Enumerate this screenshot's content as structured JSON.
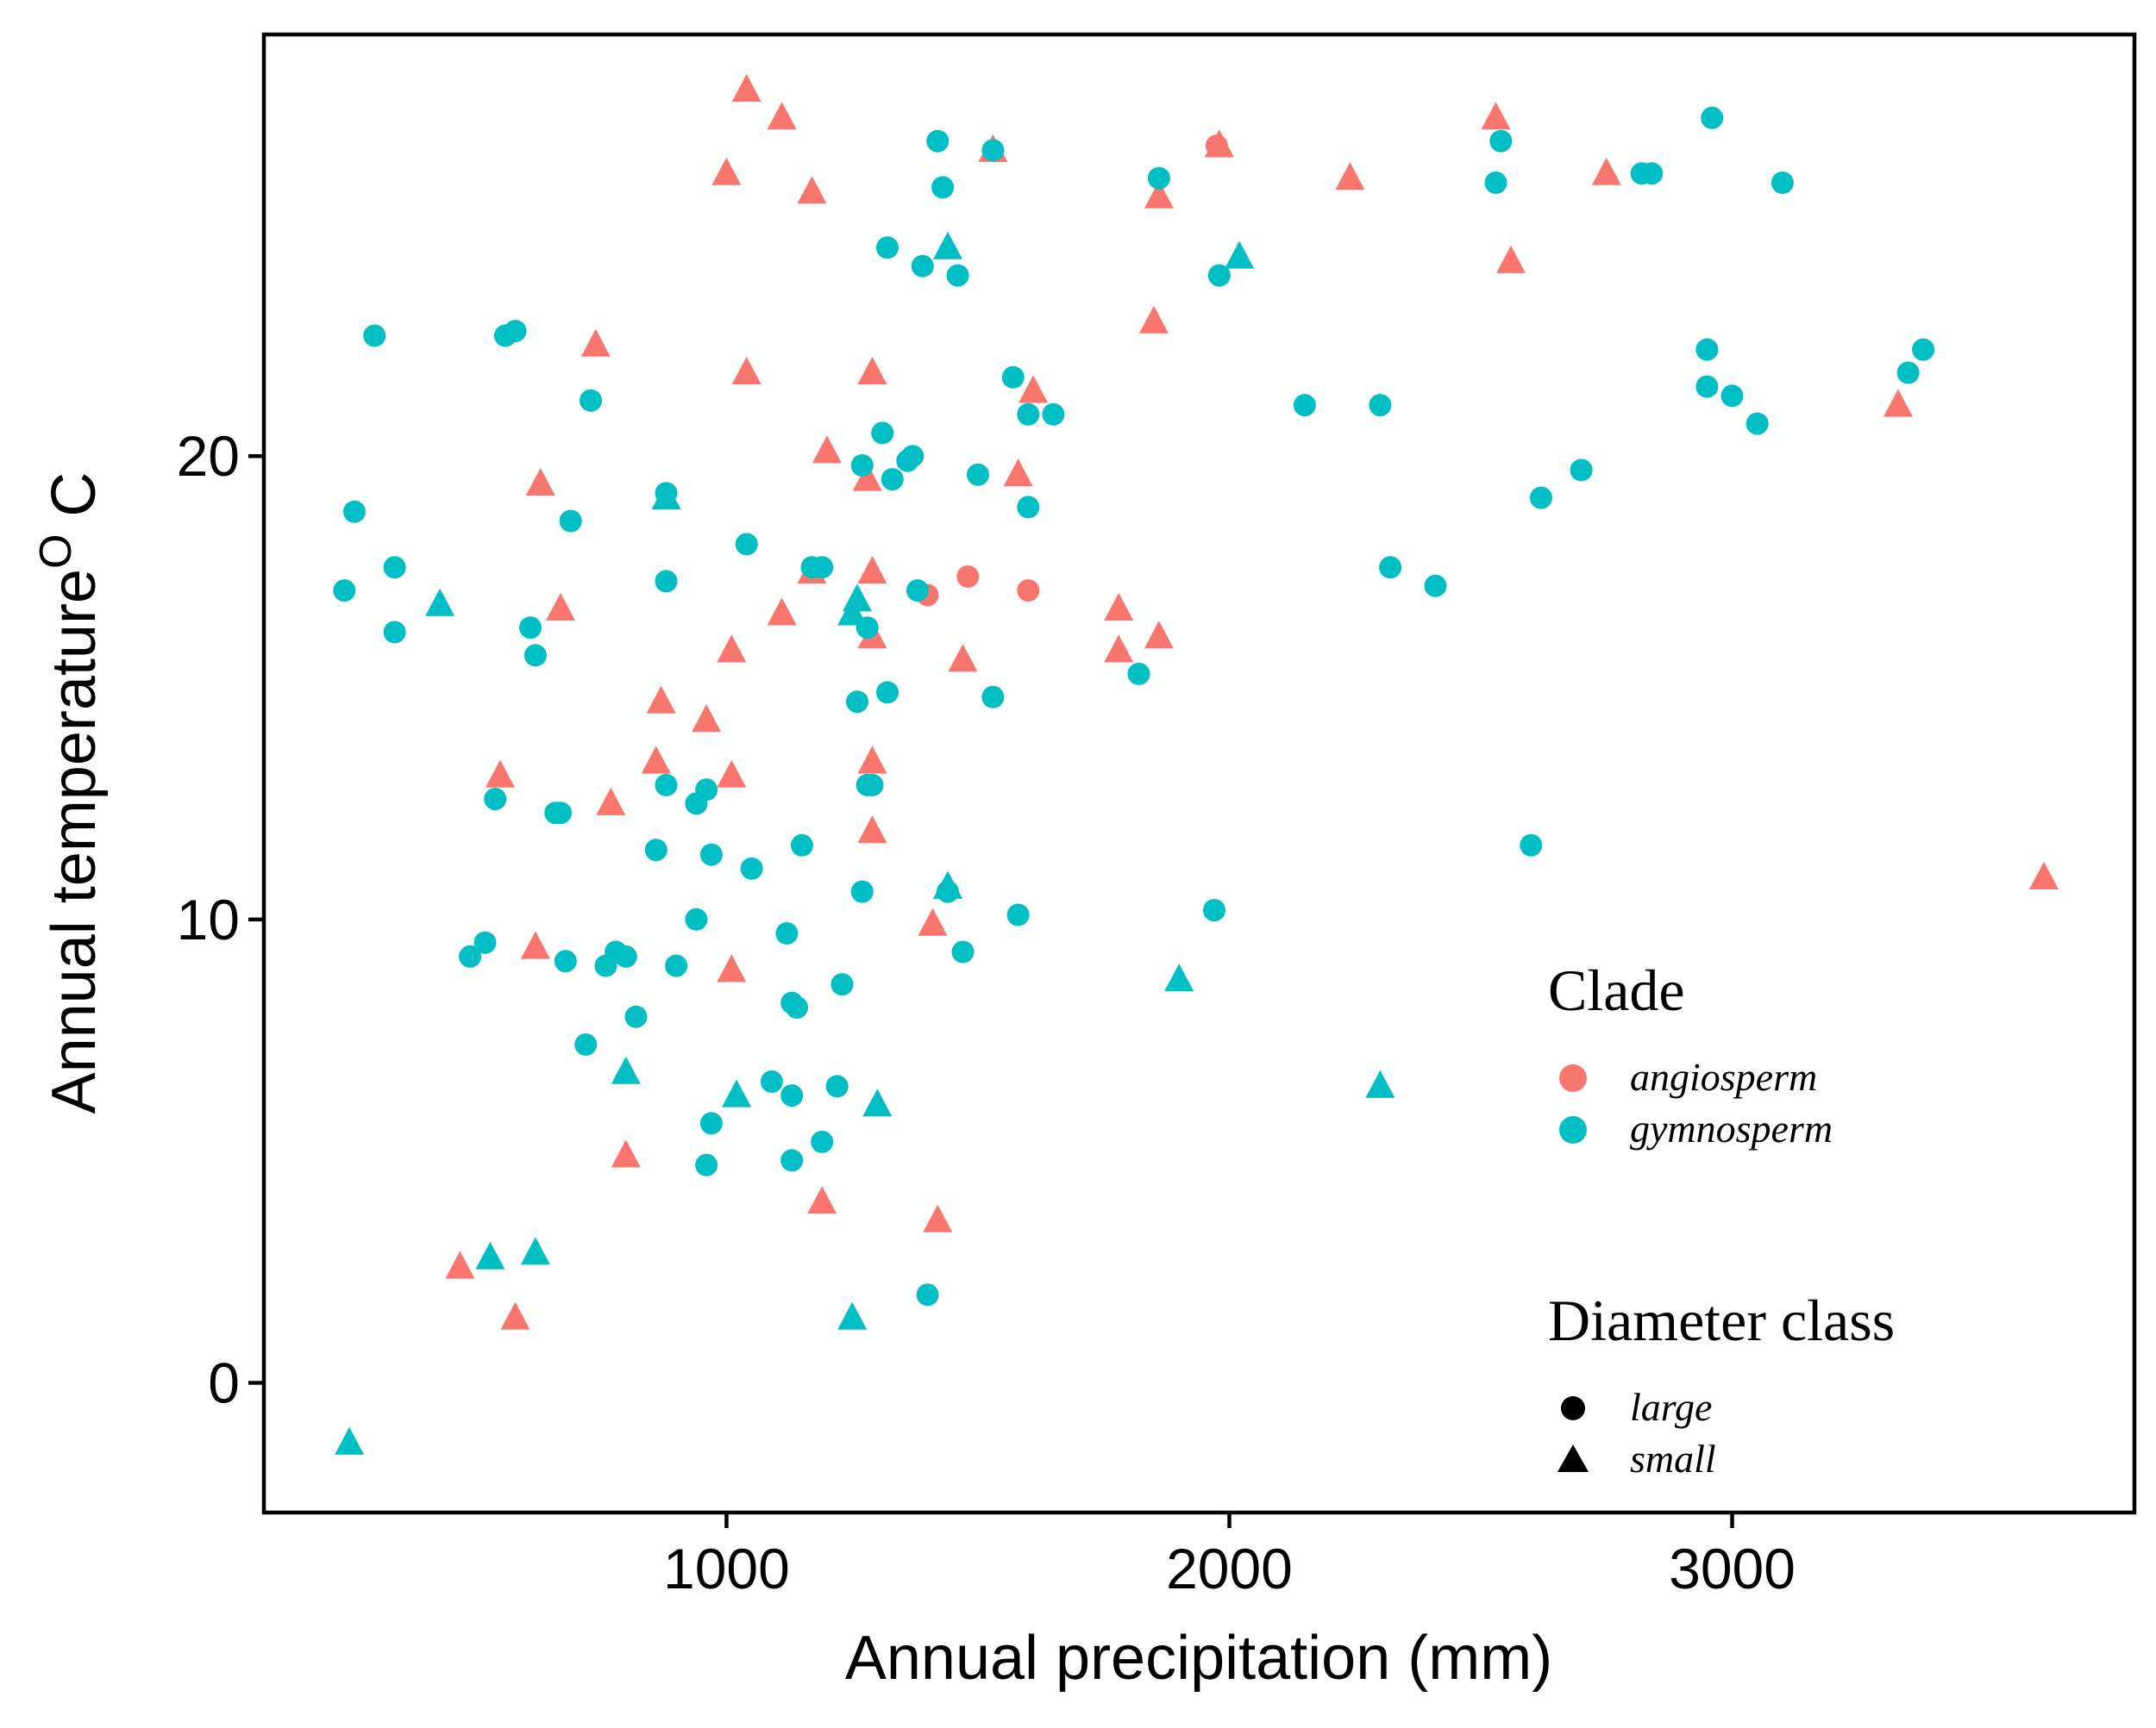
{
  "chart_data": {
    "type": "scatter",
    "title": "",
    "xlabel": "Annual precipitation (mm)",
    "ylabel": "Annual temperature",
    "ylabel_sup": "O",
    "ylabel_suffix": " C",
    "xlim": [
      80,
      3800
    ],
    "ylim": [
      -2.8,
      29.1
    ],
    "xticks": [
      1000,
      2000,
      3000
    ],
    "yticks": [
      0,
      10,
      20
    ],
    "grid": false,
    "legend_position": "right-bottom inside",
    "legends": {
      "clade": {
        "title": "Clade",
        "items": [
          {
            "label": "angiosperm",
            "color": "#F8766D"
          },
          {
            "label": "gymnosperm",
            "color": "#00BFC4"
          }
        ]
      },
      "diameter": {
        "title": "Diameter class",
        "items": [
          {
            "label": "large",
            "shape": "circle"
          },
          {
            "label": "small",
            "shape": "triangle"
          }
        ]
      }
    },
    "series": [
      {
        "clade": "angiosperm",
        "size": "large",
        "color": "#F8766D",
        "shape": "circle",
        "points": [
          [
            1400,
            17
          ],
          [
            1480,
            17.4
          ],
          [
            1600,
            17.1
          ],
          [
            1975,
            26.7
          ]
        ]
      },
      {
        "clade": "angiosperm",
        "size": "small",
        "color": "#F8766D",
        "shape": "triangle",
        "points": [
          [
            1040,
            27.9
          ],
          [
            1110,
            27.3
          ],
          [
            1000,
            26.1
          ],
          [
            1530,
            26.6
          ],
          [
            1170,
            25.7
          ],
          [
            1980,
            26.7
          ],
          [
            1860,
            25.6
          ],
          [
            2240,
            26
          ],
          [
            2530,
            27.3
          ],
          [
            2750,
            26.1
          ],
          [
            2560,
            24.2
          ],
          [
            1850,
            22.9
          ],
          [
            740,
            22.4
          ],
          [
            1040,
            21.8
          ],
          [
            1290,
            21.8
          ],
          [
            1610,
            21.4
          ],
          [
            1200,
            20.1
          ],
          [
            1280,
            19.5
          ],
          [
            1580,
            19.6
          ],
          [
            630,
            19.4
          ],
          [
            880,
            19.1
          ],
          [
            3330,
            21.1
          ],
          [
            1290,
            17.5
          ],
          [
            1170,
            17.5
          ],
          [
            670,
            16.7
          ],
          [
            1110,
            16.6
          ],
          [
            1290,
            16.1
          ],
          [
            1780,
            16.7
          ],
          [
            1010,
            15.8
          ],
          [
            1780,
            15.8
          ],
          [
            1860,
            16.1
          ],
          [
            1470,
            15.6
          ],
          [
            870,
            14.7
          ],
          [
            960,
            14.3
          ],
          [
            550,
            13.1
          ],
          [
            860,
            13.4
          ],
          [
            1010,
            13.1
          ],
          [
            1290,
            13.4
          ],
          [
            770,
            12.5
          ],
          [
            1290,
            11.9
          ],
          [
            1440,
            10.7
          ],
          [
            3620,
            10.9
          ],
          [
            1410,
            9.9
          ],
          [
            620,
            9.4
          ],
          [
            1010,
            8.9
          ],
          [
            800,
            4.9
          ],
          [
            1190,
            3.9
          ],
          [
            1420,
            3.5
          ],
          [
            470,
            2.5
          ],
          [
            580,
            1.4
          ]
        ]
      },
      {
        "clade": "gymnosperm",
        "size": "large",
        "color": "#00BFC4",
        "shape": "circle",
        "points": [
          [
            2960,
            27.3
          ],
          [
            1420,
            26.8
          ],
          [
            1530,
            26.6
          ],
          [
            2540,
            26.8
          ],
          [
            1860,
            26
          ],
          [
            2530,
            25.9
          ],
          [
            2820,
            26.1
          ],
          [
            2840,
            26.1
          ],
          [
            3100,
            25.9
          ],
          [
            1430,
            25.8
          ],
          [
            1320,
            24.5
          ],
          [
            1390,
            24.1
          ],
          [
            1460,
            23.9
          ],
          [
            1980,
            23.9
          ],
          [
            300,
            22.6
          ],
          [
            560,
            22.6
          ],
          [
            580,
            22.7
          ],
          [
            2950,
            22.3
          ],
          [
            3380,
            22.3
          ],
          [
            3350,
            21.8
          ],
          [
            1570,
            21.7
          ],
          [
            2950,
            21.5
          ],
          [
            3000,
            21.3
          ],
          [
            730,
            21.2
          ],
          [
            2150,
            21.1
          ],
          [
            2300,
            21.1
          ],
          [
            1600,
            20.9
          ],
          [
            1650,
            20.9
          ],
          [
            3050,
            20.7
          ],
          [
            1310,
            20.5
          ],
          [
            1370,
            20
          ],
          [
            1360,
            19.9
          ],
          [
            1270,
            19.8
          ],
          [
            1330,
            19.5
          ],
          [
            1500,
            19.6
          ],
          [
            2700,
            19.7
          ],
          [
            2620,
            19.1
          ],
          [
            880,
            19.2
          ],
          [
            1600,
            18.9
          ],
          [
            260,
            18.8
          ],
          [
            690,
            18.6
          ],
          [
            1040,
            18.1
          ],
          [
            340,
            17.6
          ],
          [
            1170,
            17.6
          ],
          [
            1190,
            17.6
          ],
          [
            240,
            17.1
          ],
          [
            880,
            17.3
          ],
          [
            1380,
            17.1
          ],
          [
            2320,
            17.6
          ],
          [
            2410,
            17.2
          ],
          [
            340,
            16.2
          ],
          [
            610,
            16.3
          ],
          [
            1280,
            16.3
          ],
          [
            620,
            15.7
          ],
          [
            1820,
            15.3
          ],
          [
            1320,
            14.9
          ],
          [
            1530,
            14.8
          ],
          [
            1260,
            14.7
          ],
          [
            540,
            12.6
          ],
          [
            660,
            12.3
          ],
          [
            670,
            12.3
          ],
          [
            880,
            12.9
          ],
          [
            940,
            12.5
          ],
          [
            960,
            12.8
          ],
          [
            1280,
            12.9
          ],
          [
            1290,
            12.9
          ],
          [
            1150,
            11.6
          ],
          [
            860,
            11.5
          ],
          [
            970,
            11.4
          ],
          [
            1050,
            11.1
          ],
          [
            2600,
            11.6
          ],
          [
            1270,
            10.6
          ],
          [
            1440,
            10.6
          ],
          [
            1580,
            10.1
          ],
          [
            1970,
            10.2
          ],
          [
            940,
            10
          ],
          [
            1120,
            9.7
          ],
          [
            520,
            9.5
          ],
          [
            490,
            9.2
          ],
          [
            680,
            9.1
          ],
          [
            760,
            9
          ],
          [
            780,
            9.3
          ],
          [
            800,
            9.2
          ],
          [
            900,
            9
          ],
          [
            1470,
            9.3
          ],
          [
            1230,
            8.6
          ],
          [
            1130,
            8.2
          ],
          [
            1140,
            8.1
          ],
          [
            820,
            7.9
          ],
          [
            720,
            7.3
          ],
          [
            1090,
            6.5
          ],
          [
            1130,
            6.2
          ],
          [
            1220,
            6.4
          ],
          [
            970,
            5.6
          ],
          [
            1190,
            5.2
          ],
          [
            960,
            4.7
          ],
          [
            1130,
            4.8
          ],
          [
            1400,
            1.9
          ]
        ]
      },
      {
        "clade": "gymnosperm",
        "size": "small",
        "color": "#00BFC4",
        "shape": "triangle",
        "points": [
          [
            1440,
            24.5
          ],
          [
            2020,
            24.3
          ],
          [
            880,
            19.1
          ],
          [
            430,
            16.8
          ],
          [
            1260,
            16.9
          ],
          [
            1250,
            16.6
          ],
          [
            1440,
            10.7
          ],
          [
            1900,
            8.7
          ],
          [
            800,
            6.7
          ],
          [
            1020,
            6.2
          ],
          [
            1300,
            6
          ],
          [
            2300,
            6.4
          ],
          [
            530,
            2.7
          ],
          [
            620,
            2.8
          ],
          [
            1250,
            1.4
          ],
          [
            250,
            -1.3
          ]
        ]
      }
    ]
  }
}
